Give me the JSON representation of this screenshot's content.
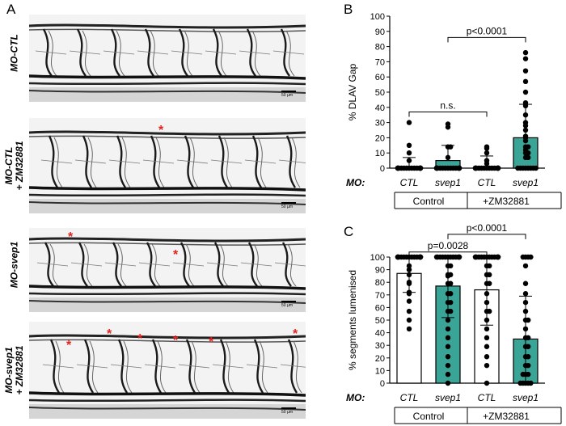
{
  "panels": {
    "a": {
      "letter": "A"
    },
    "b": {
      "letter": "B"
    },
    "c": {
      "letter": "C"
    }
  },
  "images": [
    {
      "label_line1": "MO-CTL",
      "label_line2": "",
      "scale": "50 µm",
      "stars": 0
    },
    {
      "label_line1": "MO-CTL",
      "label_line2": "+ ZM32881",
      "scale": "50 µm",
      "stars": 1
    },
    {
      "label_line1": "MO-svep1",
      "label_line2": "",
      "scale": "50 µm",
      "stars": 2
    },
    {
      "label_line1": "MO-svep1",
      "label_line2": "+ ZM32881",
      "scale": "50 µm",
      "stars": 7
    }
  ],
  "colors": {
    "ctl_bar": "#ffffff",
    "svep1_bar": "#3aa596",
    "star": "#e8201d"
  },
  "chart_data": [
    {
      "type": "bar",
      "ylabel": "% DLAV Gap",
      "ylim": [
        0,
        100
      ],
      "yticks": [
        0,
        10,
        20,
        30,
        40,
        50,
        60,
        70,
        80,
        90,
        100
      ],
      "row_label": "MO:",
      "categories": [
        "CTL",
        "svep1",
        "CTL",
        "svep1"
      ],
      "values": [
        1,
        5,
        1,
        20
      ],
      "error_upper": [
        7,
        15,
        8,
        42
      ],
      "groups": [
        {
          "name": "Control",
          "span": [
            0,
            1
          ]
        },
        {
          "name": "+ZM32881",
          "span": [
            2,
            3
          ]
        }
      ],
      "annotations": [
        {
          "text": "n.s.",
          "from": 0,
          "to": 2,
          "level": 37
        },
        {
          "text": "p<0.0001",
          "from": 1,
          "to": 3,
          "level": 86
        }
      ],
      "points": [
        [
          0,
          0,
          0,
          0,
          0,
          0,
          0,
          0,
          0,
          0,
          0,
          0,
          0,
          0,
          0,
          0,
          0,
          0,
          5,
          10,
          15,
          30
        ],
        [
          0,
          0,
          0,
          0,
          0,
          0,
          0,
          0,
          0,
          0,
          0,
          0,
          0,
          0,
          0,
          0,
          0,
          7,
          14,
          14,
          27,
          29
        ],
        [
          0,
          0,
          0,
          0,
          0,
          0,
          0,
          0,
          0,
          0,
          0,
          0,
          0,
          0,
          0,
          0,
          0,
          0,
          3,
          5,
          10,
          13,
          14
        ],
        [
          0,
          0,
          0,
          0,
          0,
          0,
          0,
          0,
          7,
          7,
          10,
          10,
          12,
          14,
          14,
          18,
          20,
          21,
          25,
          28,
          30,
          35,
          41,
          43,
          50,
          57,
          64,
          72,
          76
        ]
      ]
    },
    {
      "type": "bar",
      "ylabel": "% segments lumenised",
      "ylim": [
        0,
        100
      ],
      "yticks": [
        0,
        10,
        20,
        30,
        40,
        50,
        60,
        70,
        80,
        90,
        100
      ],
      "row_label": "MO:",
      "categories": [
        "CTL",
        "svep1",
        "CTL",
        "svep1"
      ],
      "values": [
        87,
        77,
        74,
        35
      ],
      "error_lower": [
        72,
        52,
        46,
        0
      ],
      "error_upper": [
        100,
        100,
        100,
        69
      ],
      "groups": [
        {
          "name": "Control",
          "span": [
            0,
            1
          ]
        },
        {
          "name": "+ZM32881",
          "span": [
            2,
            3
          ]
        }
      ],
      "annotations": [
        {
          "text": "p=0.0028",
          "from": 0,
          "to": 2,
          "level": 104
        },
        {
          "text": "p<0.0001",
          "from": 1,
          "to": 3,
          "level": 118
        }
      ],
      "points": [
        [
          100,
          100,
          100,
          100,
          100,
          100,
          100,
          100,
          100,
          100,
          100,
          100,
          100,
          100,
          100,
          100,
          93,
          90,
          86,
          80,
          79,
          72,
          71,
          65,
          57,
          50,
          43
        ],
        [
          100,
          100,
          100,
          100,
          100,
          100,
          100,
          100,
          100,
          100,
          100,
          100,
          93,
          93,
          86,
          86,
          85,
          79,
          79,
          71,
          71,
          64,
          64,
          57,
          57,
          50,
          43,
          36,
          29,
          21,
          14,
          7,
          0
        ],
        [
          100,
          100,
          100,
          100,
          100,
          100,
          100,
          100,
          100,
          100,
          100,
          100,
          100,
          100,
          93,
          93,
          86,
          86,
          79,
          79,
          71,
          64,
          57,
          57,
          50,
          43,
          36,
          29,
          21,
          14,
          0
        ],
        [
          100,
          100,
          100,
          100,
          93,
          79,
          71,
          64,
          57,
          50,
          50,
          43,
          36,
          36,
          29,
          29,
          21,
          21,
          14,
          14,
          7,
          7,
          7,
          0,
          0,
          0,
          0,
          0
        ]
      ]
    }
  ]
}
